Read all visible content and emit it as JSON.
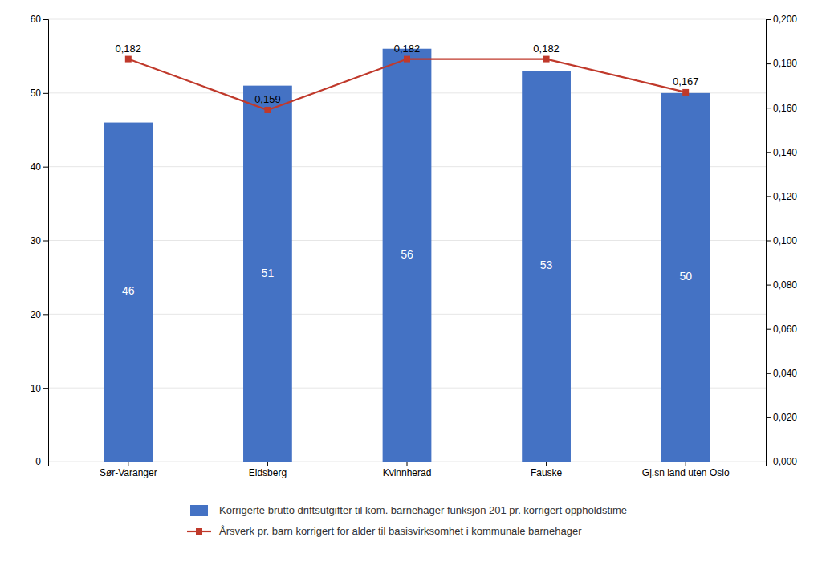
{
  "chart_data": {
    "type": "bar",
    "categories": [
      "Sør-Varanger",
      "Eidsberg",
      "Kvinnherad",
      "Fauske",
      "Gj.sn land uten Oslo"
    ],
    "series": [
      {
        "name": "Korrigerte brutto driftsutgifter til kom. barnehager funksjon 201 pr. korrigert oppholdstime",
        "type": "bar",
        "color": "#4472C4",
        "values": [
          46,
          51,
          56,
          53,
          50
        ],
        "data_labels": true
      },
      {
        "name": "Årsverk pr. barn korrigert for alder til basisvirksomhet i kommunale barnehager",
        "type": "line",
        "axis": "y2",
        "color": "#C0392B",
        "marker": "square",
        "values": [
          0.182,
          0.159,
          0.182,
          0.182,
          0.167
        ],
        "value_labels": [
          "0,182",
          "0,159",
          "0,182",
          "0,182",
          "0,167"
        ],
        "data_labels": true
      }
    ],
    "ylim": [
      0,
      60
    ],
    "yticks": [
      0,
      10,
      20,
      30,
      40,
      50,
      60
    ],
    "y2lim": [
      0.0,
      0.2
    ],
    "y2ticks": [
      {
        "value": 0.0,
        "label": "0,000"
      },
      {
        "value": 0.02,
        "label": "0,020"
      },
      {
        "value": 0.04,
        "label": "0,040"
      },
      {
        "value": 0.06,
        "label": "0,060"
      },
      {
        "value": 0.08,
        "label": "0,080"
      },
      {
        "value": 0.1,
        "label": "0,100"
      },
      {
        "value": 0.12,
        "label": "0,120"
      },
      {
        "value": 0.14,
        "label": "0,140"
      },
      {
        "value": 0.16,
        "label": "0,160"
      },
      {
        "value": 0.18,
        "label": "0,180"
      },
      {
        "value": 0.2,
        "label": "0,200"
      }
    ],
    "grid": true,
    "legend": "bottom"
  }
}
